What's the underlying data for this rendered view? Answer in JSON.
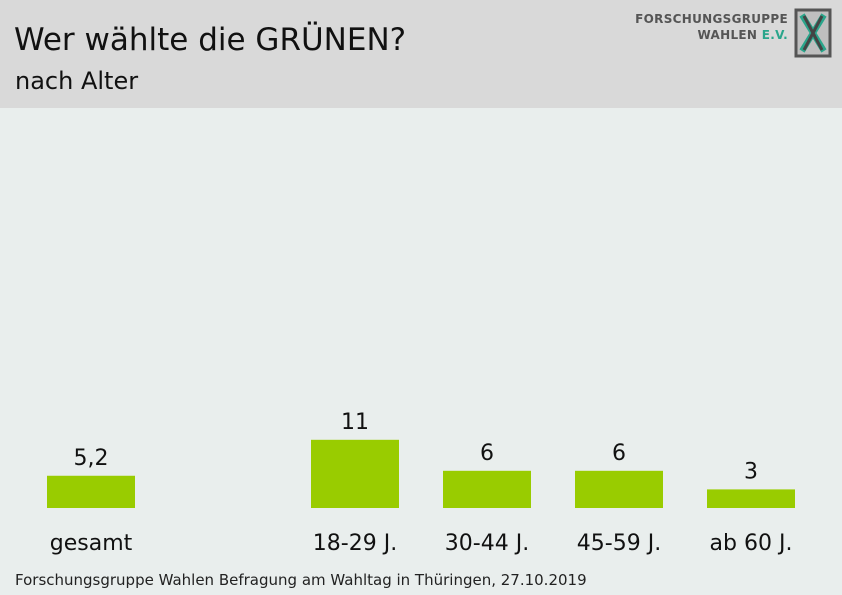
{
  "header": {
    "title": "Wer wählte die GRÜNEN?",
    "subtitle": "nach Alter"
  },
  "logo": {
    "line1": "FORSCHUNGSGRUPPE",
    "line2_main": "WAHLEN",
    "line2_accent": "E.V."
  },
  "footer": {
    "source": "Forschungsgruppe Wahlen Befragung am Wahltag in Thüringen, 27.10.2019"
  },
  "colors": {
    "bar": "#99cc00",
    "background": "#e9eeed",
    "header_bg": "#d9d9d9",
    "logo_accent": "#2aa58b"
  },
  "chart_data": {
    "type": "bar",
    "title": "Wer wählte die GRÜNEN?",
    "subtitle": "nach Alter",
    "categories": [
      "gesamt",
      "18-29 J.",
      "30-44 J.",
      "45-59 J.",
      "ab 60 J."
    ],
    "values": [
      5.2,
      11,
      6,
      6,
      3
    ],
    "value_labels": [
      "5,2",
      "11",
      "6",
      "6",
      "3"
    ],
    "ylim": [
      0,
      35
    ],
    "grid": false,
    "legend": "none"
  }
}
